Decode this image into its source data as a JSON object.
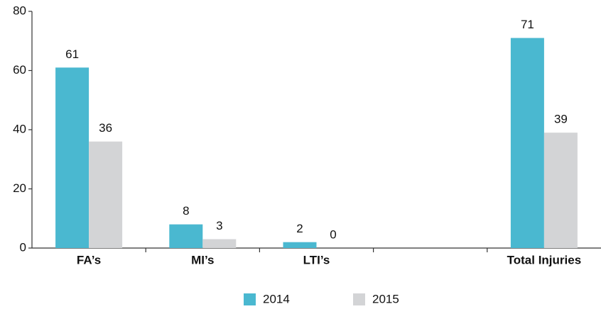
{
  "chart_data": {
    "type": "bar",
    "categories": [
      "FA’s",
      "MI’s",
      "LTI’s",
      null,
      "Total Injuries"
    ],
    "series": [
      {
        "name": "2014",
        "color": "#4ab8d0",
        "values": [
          61,
          8,
          2,
          null,
          71
        ]
      },
      {
        "name": "2015",
        "color": "#d3d4d6",
        "values": [
          36,
          3,
          0,
          null,
          39
        ]
      }
    ],
    "ylim": [
      0,
      80
    ],
    "yticks": [
      0,
      20,
      40,
      60,
      80
    ],
    "grid": false,
    "legend": "bottom"
  }
}
